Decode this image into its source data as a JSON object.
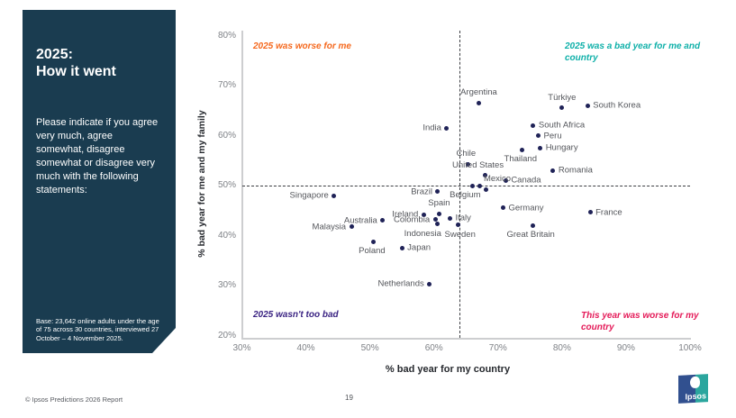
{
  "sidebar": {
    "title": "2025:\nHow it went",
    "body": "Please indicate if you agree very much, agree somewhat, disagree somewhat or disagree very much with the following statements:",
    "base_note": "Base: 23,642 online adults under the age of 75 across 30 countries, interviewed 27 October – 4 November 2025.",
    "bg_color": "#1a3c50"
  },
  "footer": {
    "copyright": "© Ipsos Predictions 2026 Report",
    "page_number": "19",
    "logo_text": "Ipsos"
  },
  "colors": {
    "dot": "#1f2257",
    "point_label": "#54565b",
    "tick": "#7f8287",
    "axis_title": "#26292e",
    "quadrant_orange": "#f5691e",
    "quadrant_teal": "#0fb0a9",
    "quadrant_purple": "#3b2483",
    "quadrant_pink": "#e41b59",
    "sidebar_bg": "#1a3c50"
  },
  "chart_data": {
    "type": "scatter",
    "xlabel": "% bad year for my country",
    "ylabel": "% bad year for me and my family",
    "xlim": [
      30,
      100
    ],
    "ylim": [
      20,
      80
    ],
    "grid": false,
    "x_tick_labels": [
      "30%",
      "40%",
      "50%",
      "60%",
      "70%",
      "80%",
      "90%",
      "100%"
    ],
    "y_tick_labels": [
      "80%",
      "70%",
      "60%",
      "50%",
      "40%",
      "30%",
      "20%"
    ],
    "crosshair": {
      "x": 64,
      "y": 50
    },
    "quadrant_labels": [
      {
        "text": "2025 was worse for me",
        "color": "#f5691e",
        "pos": "tl"
      },
      {
        "text": "2025 was a bad year for me and\ncountry",
        "color": "#0fb0a9",
        "pos": "tr"
      },
      {
        "text": "2025 wasn't too bad",
        "color": "#3b2483",
        "pos": "bl"
      },
      {
        "text": "This year was worse for my\ncountry",
        "color": "#e41b59",
        "pos": "br"
      }
    ],
    "points": [
      {
        "label": "Argentina",
        "x": 67,
        "y": 66.5,
        "side": "above"
      },
      {
        "label": "Türkiye",
        "x": 80,
        "y": 65.5,
        "side": "above"
      },
      {
        "label": "South Korea",
        "x": 84,
        "y": 66,
        "side": "right"
      },
      {
        "label": "India",
        "x": 62,
        "y": 61.5,
        "side": "left"
      },
      {
        "label": "South Africa",
        "x": 75.5,
        "y": 62,
        "side": "right"
      },
      {
        "label": "Peru",
        "x": 76.3,
        "y": 60,
        "side": "right"
      },
      {
        "label": "Hungary",
        "x": 76.6,
        "y": 57.5,
        "side": "right"
      },
      {
        "label": "Thailand",
        "x": 73.8,
        "y": 57.2,
        "side": "below",
        "dx": -2
      },
      {
        "label": "Chile",
        "x": 65.3,
        "y": 54.3,
        "side": "above",
        "dx": -2
      },
      {
        "label": "Romania",
        "x": 78.6,
        "y": 53,
        "side": "right"
      },
      {
        "label": "United States",
        "x": 68,
        "y": 52,
        "side": "above",
        "dx": -8
      },
      {
        "label": "Canada",
        "x": 71.2,
        "y": 51,
        "side": "right"
      },
      {
        "label": "Belgium",
        "x": 66,
        "y": 50,
        "side": "below",
        "dx": -8
      },
      {
        "label": "",
        "x": 67.2,
        "y": 50,
        "side": "right"
      },
      {
        "label": "Mexico",
        "x": 68.2,
        "y": 49.2,
        "side": "above",
        "dx": 12
      },
      {
        "label": "Brazil",
        "x": 60.6,
        "y": 48.8,
        "side": "left"
      },
      {
        "label": "Singapore",
        "x": 44.4,
        "y": 48,
        "side": "left"
      },
      {
        "label": "Spain",
        "x": 60.8,
        "y": 44.4,
        "side": "above"
      },
      {
        "label": "Ireland",
        "x": 58.4,
        "y": 44.2,
        "side": "left"
      },
      {
        "label": "Italy",
        "x": 62.5,
        "y": 43.5,
        "side": "right"
      },
      {
        "label": "Colombia",
        "x": 60.2,
        "y": 43.2,
        "side": "left"
      },
      {
        "label": "Indonesia",
        "x": 60.5,
        "y": 42.3,
        "side": "below",
        "dx": -16
      },
      {
        "label": "Sweden",
        "x": 63.8,
        "y": 42.1,
        "side": "below",
        "dx": 2
      },
      {
        "label": "Australia",
        "x": 52,
        "y": 43,
        "side": "left"
      },
      {
        "label": "Malaysia",
        "x": 47.1,
        "y": 41.8,
        "side": "left"
      },
      {
        "label": "Poland",
        "x": 50.6,
        "y": 38.8,
        "side": "below",
        "dx": -2
      },
      {
        "label": "Japan",
        "x": 55,
        "y": 37.5,
        "side": "right"
      },
      {
        "label": "Netherlands",
        "x": 59.3,
        "y": 30.3,
        "side": "left"
      },
      {
        "label": "Germany",
        "x": 70.8,
        "y": 45.5,
        "side": "right"
      },
      {
        "label": "Great Britain",
        "x": 75.4,
        "y": 42,
        "side": "below",
        "dx": -2
      },
      {
        "label": "France",
        "x": 84.4,
        "y": 44.6,
        "side": "right"
      }
    ]
  }
}
